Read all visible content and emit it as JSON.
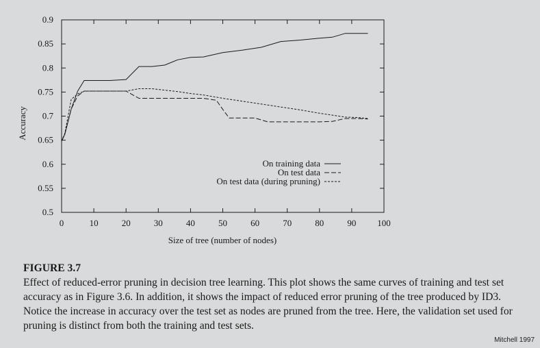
{
  "chart_data": {
    "type": "line",
    "title": "",
    "xlabel": "Size of tree (number of nodes)",
    "ylabel": "Accuracy",
    "xlim": [
      0,
      100
    ],
    "ylim": [
      0.5,
      0.9
    ],
    "xticks": [
      0,
      10,
      20,
      30,
      40,
      50,
      60,
      70,
      80,
      90,
      100
    ],
    "yticks": [
      0.5,
      0.55,
      0.6,
      0.65,
      0.7,
      0.75,
      0.8,
      0.85,
      0.9
    ],
    "legend_position": "bottom-right",
    "series": [
      {
        "name": "On training data",
        "style": "solid",
        "x": [
          0,
          1,
          3,
          5,
          7,
          10,
          15,
          20,
          24,
          28,
          32,
          36,
          40,
          44,
          50,
          56,
          62,
          68,
          74,
          80,
          84,
          88,
          92,
          95
        ],
        "y": [
          0.648,
          0.662,
          0.715,
          0.752,
          0.774,
          0.774,
          0.774,
          0.776,
          0.803,
          0.803,
          0.806,
          0.817,
          0.822,
          0.823,
          0.832,
          0.837,
          0.843,
          0.855,
          0.858,
          0.862,
          0.864,
          0.872,
          0.872,
          0.872
        ]
      },
      {
        "name": "On test data",
        "style": "dashed",
        "x": [
          0,
          1,
          3,
          5,
          7,
          10,
          15,
          20,
          24,
          28,
          32,
          36,
          40,
          44,
          48,
          50,
          52,
          56,
          60,
          64,
          68,
          74,
          80,
          84,
          88,
          92,
          95
        ],
        "y": [
          0.648,
          0.663,
          0.715,
          0.742,
          0.752,
          0.752,
          0.752,
          0.752,
          0.737,
          0.737,
          0.737,
          0.737,
          0.737,
          0.737,
          0.733,
          0.714,
          0.696,
          0.696,
          0.696,
          0.688,
          0.688,
          0.688,
          0.688,
          0.689,
          0.695,
          0.695,
          0.694
        ]
      },
      {
        "name": "On test data (during pruning)",
        "style": "dotted",
        "x": [
          0,
          1,
          3,
          5,
          7,
          10,
          15,
          20,
          24,
          28,
          32,
          36,
          40,
          44,
          50,
          56,
          62,
          68,
          74,
          80,
          84,
          88,
          92,
          95
        ],
        "y": [
          0.648,
          0.664,
          0.735,
          0.746,
          0.752,
          0.752,
          0.752,
          0.752,
          0.757,
          0.757,
          0.754,
          0.751,
          0.747,
          0.744,
          0.737,
          0.731,
          0.725,
          0.719,
          0.713,
          0.706,
          0.702,
          0.698,
          0.697,
          0.695
        ]
      }
    ]
  },
  "caption": {
    "label": "FIGURE 3.7",
    "text": "Effect of reduced-error pruning in decision tree learning. This plot shows the same curves of training and test set accuracy as in Figure 3.6. In addition, it shows the impact of reduced error pruning of the tree produced by ID3. Notice the increase in accuracy over the test set as nodes are pruned from the tree. Here, the validation set used for pruning is distinct from both the training and test sets."
  },
  "credit": "Mitchell 1997",
  "colors": {
    "ink": "#1a1a1a",
    "paper": "#d8dadb"
  }
}
